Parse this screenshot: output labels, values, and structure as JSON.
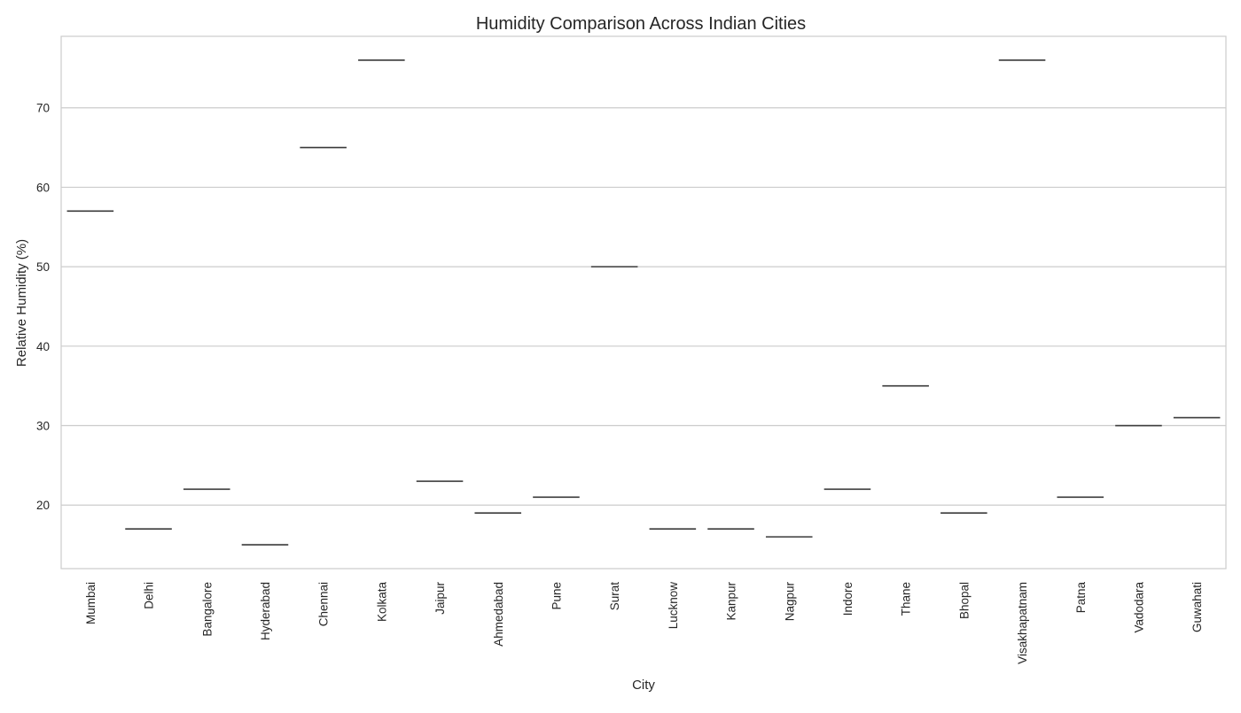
{
  "chart_data": {
    "type": "box",
    "title": "Humidity Comparison Across Indian Cities",
    "xlabel": "City",
    "ylabel": "Relative Humidity (%)",
    "ylim": [
      12,
      79
    ],
    "yticks": [
      20,
      30,
      40,
      50,
      60,
      70
    ],
    "grid": "horizontal",
    "categories": [
      "Mumbai",
      "Delhi",
      "Bangalore",
      "Hyderabad",
      "Chennai",
      "Kolkata",
      "Jaipur",
      "Ahmedabad",
      "Pune",
      "Surat",
      "Lucknow",
      "Kanpur",
      "Nagpur",
      "Indore",
      "Thane",
      "Bhopal",
      "Visakhapatnam",
      "Patna",
      "Vadodara",
      "Guwahati"
    ],
    "values": [
      57,
      17,
      22,
      15,
      65,
      76,
      23,
      19,
      21,
      50,
      17,
      17,
      16,
      22,
      35,
      19,
      76,
      21,
      30,
      31
    ]
  }
}
